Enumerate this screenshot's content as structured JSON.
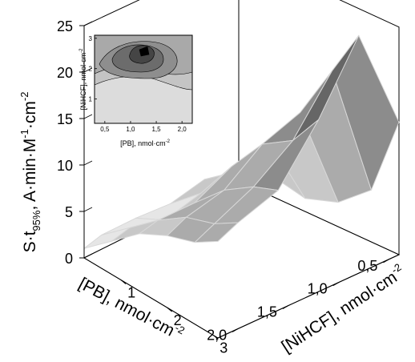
{
  "chart_data": {
    "type": "surface3d",
    "z_axis": {
      "label_main": "S·t",
      "label_sub": "95%",
      "label_rest": ", A·min·M",
      "label_sup1": "-1",
      "label_rest2": "·cm",
      "label_sup2": "-2",
      "range": [
        0,
        25
      ],
      "ticks": [
        "0",
        "5",
        "10",
        "15",
        "20",
        "25"
      ]
    },
    "x_axis": {
      "label": "[PB], nmol·cm",
      "label_sup": "-2",
      "range": [
        0.4,
        2.2
      ],
      "ticks": [
        "0,5",
        "1,0",
        "1,5",
        "2,0"
      ]
    },
    "y_axis": {
      "label": "[NiHCF], nmol·cm",
      "label_sup": "-2",
      "range": [
        0.2,
        3.1
      ],
      "ticks": [
        "1",
        "2",
        "3"
      ]
    },
    "surface": {
      "pb": [
        0.4,
        0.8,
        1.2,
        1.6,
        2.0,
        2.2
      ],
      "nihcf": [
        0.2,
        0.8,
        1.4,
        2.0,
        2.6,
        3.1
      ],
      "values": [
        [
          1.0,
          2.2,
          1.4,
          2.6,
          5.5,
          14.0
        ],
        [
          2.0,
          4.5,
          9.5,
          14.0,
          20.0,
          25.0
        ],
        [
          1.2,
          4.0,
          8.5,
          12.5,
          14.5,
          18.0
        ],
        [
          1.5,
          3.0,
          6.5,
          9.5,
          11.5,
          12.5
        ],
        [
          1.5,
          4.0,
          6.5,
          8.5,
          9.5,
          11.0
        ],
        [
          1.0,
          3.5,
          6.0,
          7.5,
          8.5,
          10.0
        ]
      ],
      "levels": [
        0,
        5,
        10,
        15,
        20,
        25
      ],
      "level_colors": [
        "#e6e6e6",
        "#c8c8c8",
        "#ababab",
        "#8c8c8c",
        "#666666",
        "#333333",
        "#000000"
      ]
    },
    "inset": {
      "type": "contour",
      "x_label": "[PB], nmol·cm",
      "x_sup": "-2",
      "y_label": "[NiHCF], nmol·cm",
      "y_sup": "-2",
      "x_ticks": [
        "0,5",
        "1,0",
        "1,5",
        "2,0"
      ],
      "y_ticks": [
        "1",
        "2",
        "3"
      ],
      "x_range": [
        0.3,
        2.2
      ],
      "y_range": [
        0.2,
        3.1
      ]
    },
    "grid": true
  }
}
